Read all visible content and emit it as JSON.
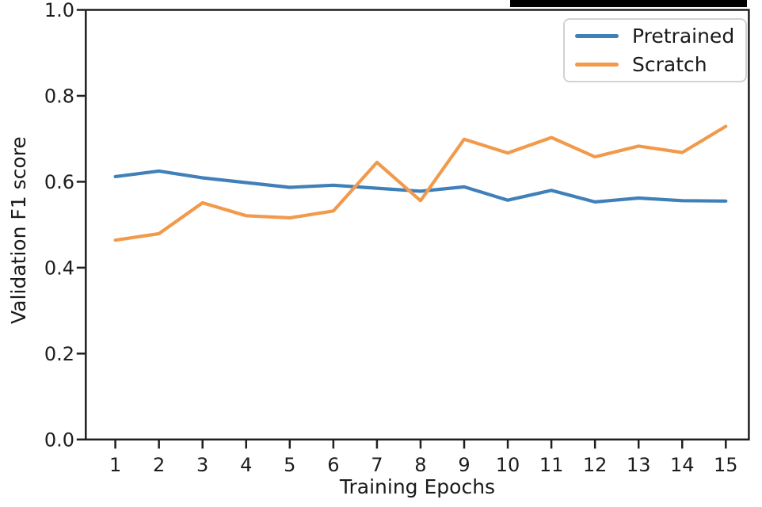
{
  "chart_data": {
    "type": "line",
    "title": "",
    "xlabel": "Training Epochs",
    "ylabel": "Validation F1 score",
    "x": [
      1,
      2,
      3,
      4,
      5,
      6,
      7,
      8,
      9,
      10,
      11,
      12,
      13,
      14,
      15
    ],
    "x_tick_labels": [
      "1",
      "2",
      "3",
      "4",
      "5",
      "6",
      "7",
      "8",
      "9",
      "10",
      "11",
      "12",
      "13",
      "14",
      "15"
    ],
    "y_ticks": [
      0.0,
      0.2,
      0.4,
      0.6,
      0.8,
      1.0
    ],
    "y_tick_labels": [
      "0.0",
      "0.2",
      "0.4",
      "0.6",
      "0.8",
      "1.0"
    ],
    "xlim": [
      0.33,
      15.53
    ],
    "ylim": [
      0.0,
      1.0
    ],
    "grid": false,
    "legend_position": "upper right",
    "series": [
      {
        "name": "Pretrained",
        "color": "#4080b8",
        "values": [
          0.612,
          0.625,
          0.609,
          0.598,
          0.587,
          0.592,
          0.585,
          0.578,
          0.588,
          0.557,
          0.58,
          0.553,
          0.562,
          0.556,
          0.555
        ]
      },
      {
        "name": "Scratch",
        "color": "#f29a4b",
        "values": [
          0.464,
          0.479,
          0.551,
          0.521,
          0.516,
          0.532,
          0.645,
          0.556,
          0.699,
          0.667,
          0.703,
          0.658,
          0.683,
          0.668,
          0.729
        ]
      }
    ]
  },
  "decorations": {
    "redaction_bar_color": "#000000"
  }
}
